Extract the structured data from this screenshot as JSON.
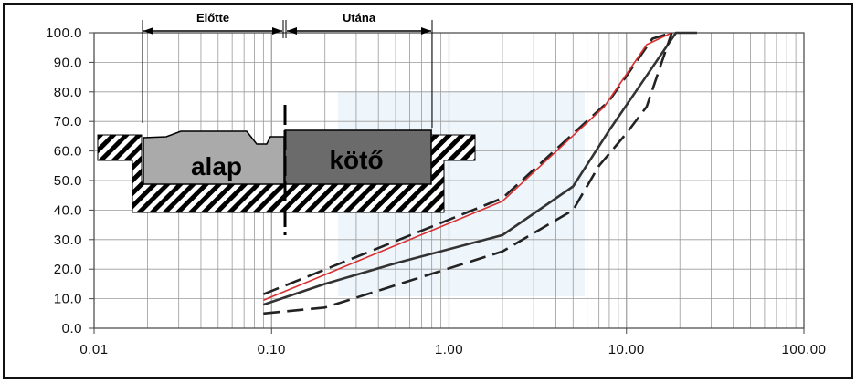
{
  "chart_data": {
    "type": "line",
    "x_scale": "log",
    "xlim": [
      0.01,
      100
    ],
    "ylim": [
      0,
      100
    ],
    "grid": true,
    "x_ticks": [
      "0.01",
      "0.10",
      "1.00",
      "10.00",
      "100.00"
    ],
    "y_ticks": [
      "0.0",
      "10.0",
      "20.0",
      "30.0",
      "40.0",
      "50.0",
      "60.0",
      "70.0",
      "80.0",
      "90.0",
      "100.0"
    ],
    "series": [
      {
        "style": "dashed",
        "color": "#222222",
        "points": [
          [
            0.09,
            11.5
          ],
          [
            2.0,
            44.0
          ],
          [
            8.0,
            77.0
          ],
          [
            14.0,
            98.0
          ],
          [
            18.0,
            100.0
          ]
        ]
      },
      {
        "style": "solid",
        "color": "#d8302f",
        "points": [
          [
            0.09,
            9.5
          ],
          [
            2.0,
            43.0
          ],
          [
            7.5,
            75.0
          ],
          [
            13.0,
            96.0
          ],
          [
            18.0,
            100.0
          ]
        ]
      },
      {
        "style": "solid",
        "color": "#333333",
        "points": [
          [
            0.09,
            8.0
          ],
          [
            0.2,
            15.0
          ],
          [
            0.5,
            22.0
          ],
          [
            2.0,
            31.5
          ],
          [
            5.0,
            48.0
          ],
          [
            8.0,
            67.0
          ],
          [
            12.5,
            84.0
          ],
          [
            19.0,
            100.0
          ],
          [
            25.0,
            100.0
          ]
        ]
      },
      {
        "style": "dashed",
        "color": "#222222",
        "points": [
          [
            0.09,
            5.0
          ],
          [
            0.2,
            7.0
          ],
          [
            2.0,
            26.0
          ],
          [
            5.0,
            40.0
          ],
          [
            7.0,
            55.0
          ],
          [
            10.0,
            66.0
          ],
          [
            13.0,
            75.0
          ],
          [
            18.0,
            100.0
          ]
        ]
      }
    ]
  },
  "inset": {
    "before_label": "Előtte",
    "after_label": "Utána",
    "base_label": "alap",
    "binder_label": "kötő"
  },
  "colors": {
    "frame": "#111111",
    "grid": "#9a9a9a",
    "red_curve": "#d8302f",
    "layer_base": "#aaaaaa",
    "layer_binder": "#6b6b6b",
    "watermark": "#eef5fb"
  }
}
